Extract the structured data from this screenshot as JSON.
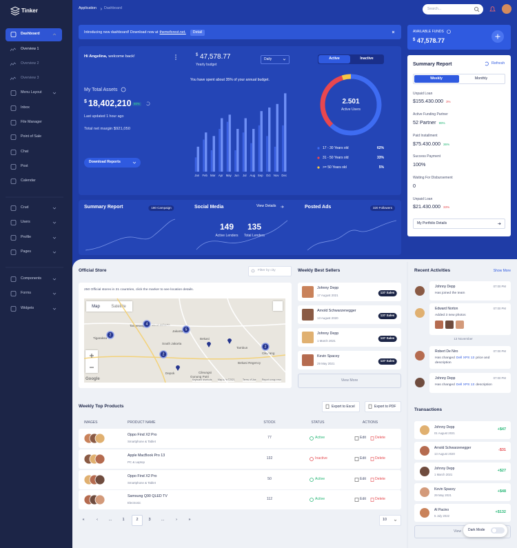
{
  "sidebar": {
    "brand": "Tinker",
    "menu": [
      "Dashboard",
      "Overview 1",
      "Overview 2",
      "Overview 3",
      "Menu Layout",
      "Inbox",
      "File Manager",
      "Point of Sale",
      "Chat",
      "Post",
      "Calendar",
      "Crud",
      "Users",
      "Profile",
      "Pages",
      "Components",
      "Forms",
      "Widgets"
    ]
  },
  "header": {
    "breadcrumb": [
      "Application",
      "Dashboard"
    ],
    "search_placeholder": "Search..."
  },
  "banner": {
    "text": "Introducing new dashboard! Download now at",
    "link": "themeforest.net.",
    "button": "Detail"
  },
  "welcome": {
    "name": "Hi Angelina,",
    "message": "welcome back!"
  },
  "assets": {
    "title": "My Total Assets",
    "currency": "$",
    "amount": "18,402,210",
    "change": "60%",
    "updated": "Last updated 1 hour ago",
    "margin": "Total net margin $921,050",
    "button": "Download Reports"
  },
  "budget": {
    "currency": "$",
    "amount": "47,578.77",
    "label": "Yearly budget",
    "period": "Daily",
    "note": "You have spent about 35% of your annual budget."
  },
  "users": {
    "tabs": [
      "Active",
      "Inactive"
    ],
    "center_value": "2.501",
    "center_label": "Active Users"
  },
  "chart_data": [
    {
      "type": "bar",
      "categories": [
        "Jan",
        "Feb",
        "Mar",
        "Apr",
        "May",
        "Jun",
        "Jul",
        "Aug",
        "Sep",
        "Oct",
        "Nov",
        "Dec"
      ],
      "series": [
        {
          "color": "#3b61e3",
          "values": [
            20,
            45,
            30,
            60,
            70,
            30,
            55,
            40,
            65,
            50,
            35,
            65
          ]
        },
        {
          "color": "#6f90f6",
          "values": [
            35,
            55,
            50,
            75,
            80,
            60,
            75,
            60,
            85,
            90,
            95,
            110
          ]
        }
      ],
      "ylim": [
        0,
        120
      ]
    },
    {
      "type": "pie",
      "donut": true,
      "categories": [
        "17 - 30 Years old",
        "31 - 50 Years old",
        ">= 50 Years old"
      ],
      "values": [
        62,
        33,
        5
      ],
      "value_labels": [
        "62%",
        "33%",
        "5%"
      ],
      "colors": [
        "#3e6cf2",
        "#e8474f",
        "#f6c646"
      ]
    }
  ],
  "funds": {
    "label": "AVAILABLE FUNDS",
    "currency": "$",
    "amount": "47,578.77"
  },
  "summary": {
    "title": "Summary Report",
    "refresh": "Refresh",
    "tabs": [
      "Weekly",
      "Monthly"
    ],
    "items": [
      {
        "label": "Unpaid Loan",
        "value": "$155.430.000",
        "change": "3%",
        "color": "#e5484d"
      },
      {
        "label": "Active Funding Partner",
        "value": "52 Partner",
        "change": "99%",
        "color": "#22b573"
      },
      {
        "label": "Paid Installment",
        "value": "$75.430.000",
        "change": "36%",
        "color": "#22b573"
      },
      {
        "label": "Success Payment",
        "value": "100%"
      },
      {
        "label": "Waiting For Disbursement",
        "value": "0"
      },
      {
        "label": "Unpaid Loan",
        "value": "$21.430.000",
        "change": "33%",
        "color": "#e5484d"
      }
    ],
    "button": "My Portfolio Details"
  },
  "strip": {
    "summary": {
      "title": "Summary Report",
      "badge": "180 Campaign"
    },
    "social": {
      "title": "Social Media",
      "link": "View Details",
      "stats": [
        {
          "value": "149",
          "label": "Active Lenders"
        },
        {
          "value": "135",
          "label": "Total Lenders"
        }
      ]
    },
    "ads": {
      "title": "Posted Ads",
      "badge": "320 Followers"
    }
  },
  "store": {
    "title": "Official Store",
    "filter": "Filter by city",
    "text": "250 Official stores in 21 countries, click the marker to see location details.",
    "map_tabs": [
      "Map",
      "Satellite"
    ],
    "places": [
      "Tangerang",
      "West Jakarta",
      "Jakarta",
      "South Jakarta",
      "Bekasi",
      "Tigaraksa",
      "Depok",
      "Cileungsi",
      "Gunung Putri",
      "Bekasi Regency",
      "Cikarang",
      "Tambun"
    ],
    "clusters": [
      "2",
      "4",
      "5",
      "2",
      "2"
    ],
    "attribution": "Google",
    "footer": [
      "Keyboard shortcuts",
      "Map data ©2021",
      "Terms of Use",
      "Report a map error"
    ]
  },
  "sellers": {
    "title": "Weekly Best Sellers",
    "items": [
      {
        "name": "Johnny Depp",
        "date": "17 August 2021",
        "sales": "137 Sales"
      },
      {
        "name": "Arnold Schwarzenegger",
        "date": "13 August 2020",
        "sales": "137 Sales"
      },
      {
        "name": "Johnny Depp",
        "date": "1 March 2021",
        "sales": "137 Sales"
      },
      {
        "name": "Kevin Spacey",
        "date": "29 May 2021",
        "sales": "137 Sales"
      }
    ],
    "button": "View More"
  },
  "activities": {
    "title": "Recent Activities",
    "more": "Show More",
    "items": [
      {
        "name": "Johnny Depp",
        "time": "07:00 PM",
        "text": "Has joined the team"
      },
      {
        "name": "Edward Norton",
        "time": "07:00 PM",
        "text": "Added 3 new photos"
      },
      {
        "name": "Robert De Niro",
        "time": "07:00 PM",
        "text": "Has changed",
        "link": "Dell XPS 13",
        "after": "price and description"
      },
      {
        "name": "Johnny Depp",
        "time": "07:00 PM",
        "text": "Has changed",
        "link": "Dell XPS 13",
        "after": "description"
      }
    ],
    "divider": "13 November"
  },
  "products": {
    "title": "Weekly Top Products",
    "buttons": [
      "Export to Excel",
      "Export to PDF"
    ],
    "columns": [
      "IMAGES",
      "PRODUCT NAME",
      "STOCK",
      "STATUS",
      "ACTIONS"
    ],
    "rows": [
      {
        "name": "Oppo Find X2 Pro",
        "category": "Smartphone & Tablet",
        "stock": "77",
        "status": "Active",
        "status_color": "#22b573"
      },
      {
        "name": "Apple MacBook Pro 13",
        "category": "PC & Laptop",
        "stock": "132",
        "status": "Inactive",
        "status_color": "#e5484d"
      },
      {
        "name": "Oppo Find X2 Pro",
        "category": "Smartphone & Tablet",
        "stock": "50",
        "status": "Active",
        "status_color": "#22b573"
      },
      {
        "name": "Samsung Q90 QLED TV",
        "category": "Electronic",
        "stock": "112",
        "status": "Active",
        "status_color": "#22b573"
      }
    ],
    "actions": [
      "Edit",
      "Delete"
    ],
    "pagination": [
      "«",
      "‹",
      "...",
      "1",
      "2",
      "3",
      "...",
      "›",
      "»"
    ],
    "page_size": "10"
  },
  "transactions": {
    "title": "Transactions",
    "items": [
      {
        "name": "Johnny Depp",
        "date": "01 August 2021",
        "amount": "+$47",
        "color": "#22b573"
      },
      {
        "name": "Arnold Schwarzenegger",
        "date": "13 August 2020",
        "amount": "-$31",
        "color": "#e5484d"
      },
      {
        "name": "Johnny Depp",
        "date": "1 March 2021",
        "amount": "+$27",
        "color": "#22b573"
      },
      {
        "name": "Kevin Spacey",
        "date": "29 May 2021",
        "amount": "+$48",
        "color": "#22b573"
      },
      {
        "name": "Al Pacino",
        "date": "5 July 2022",
        "amount": "+$132",
        "color": "#22b573"
      }
    ],
    "button": "View",
    "dark_mode": "Dark Mode"
  }
}
